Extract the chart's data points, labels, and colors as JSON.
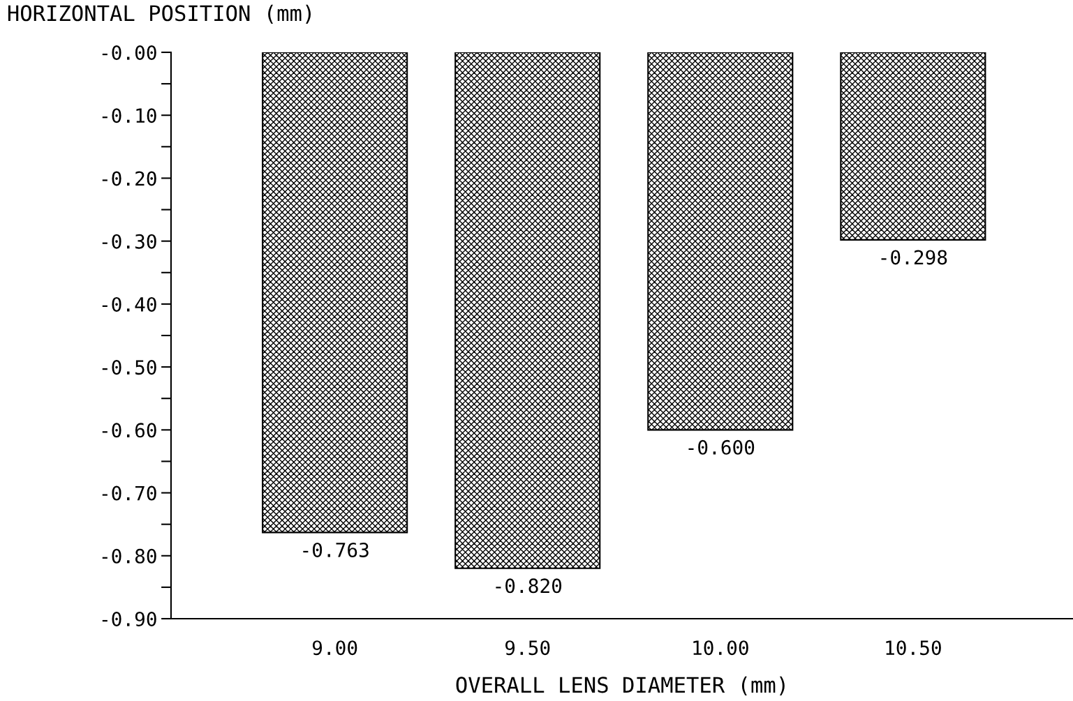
{
  "chart_data": {
    "type": "bar",
    "ylabel": "HORIZONTAL POSITION (mm)",
    "xlabel": "OVERALL LENS DIAMETER (mm)",
    "categories": [
      "9.00",
      "9.50",
      "10.00",
      "10.50"
    ],
    "values": [
      -0.763,
      -0.82,
      -0.6,
      -0.298
    ],
    "value_labels": [
      "-0.763",
      "-0.820",
      "-0.600",
      "-0.298"
    ],
    "color": "#000000",
    "ylim": [
      -0.9,
      0
    ],
    "yticks": [
      {
        "value": 0,
        "label": "-0.00"
      },
      {
        "value": -0.05,
        "label": null
      },
      {
        "value": -0.1,
        "label": "-0.10"
      },
      {
        "value": -0.15,
        "label": null
      },
      {
        "value": -0.2,
        "label": "-0.20"
      },
      {
        "value": -0.25,
        "label": null
      },
      {
        "value": -0.3,
        "label": "-0.30"
      },
      {
        "value": -0.35,
        "label": null
      },
      {
        "value": -0.4,
        "label": "-0.40"
      },
      {
        "value": -0.45,
        "label": null
      },
      {
        "value": -0.5,
        "label": "-0.50"
      },
      {
        "value": -0.55,
        "label": null
      },
      {
        "value": -0.6,
        "label": "-0.60"
      },
      {
        "value": -0.65,
        "label": null
      },
      {
        "value": -0.7,
        "label": "-0.70"
      },
      {
        "value": -0.75,
        "label": null
      },
      {
        "value": -0.8,
        "label": "-0.80"
      },
      {
        "value": -0.85,
        "label": null
      },
      {
        "value": -0.9,
        "label": "-0.90"
      }
    ],
    "grid": false,
    "legend": false
  }
}
